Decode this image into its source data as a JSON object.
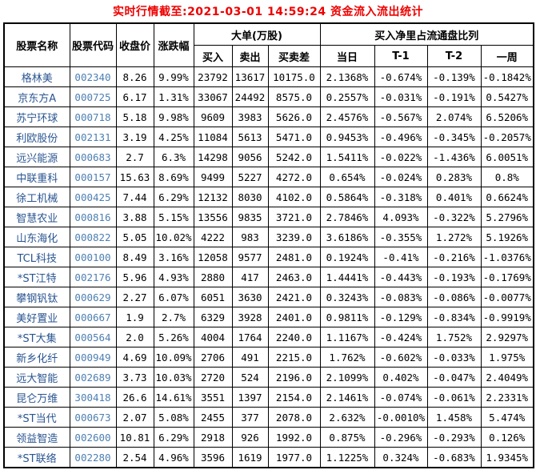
{
  "title": "实时行情截至:2021-03-01 14:59:24 资金流入流出统计",
  "colors": {
    "title_text": "#ee0000",
    "stock_name": "#2a5590",
    "stock_code": "#4d7fb2",
    "border": "#000000",
    "text": "#000000",
    "background": "#ffffff"
  },
  "chart_data": {
    "type": "table",
    "title": "实时行情截至:2021-03-01 14:59:24 资金流入流出统计",
    "column_groups": [
      {
        "label": "大单(万股)",
        "columns": [
          "买入",
          "卖出",
          "买卖差"
        ]
      },
      {
        "label": "买入净里占流通盘比列",
        "columns": [
          "当日",
          "T-1",
          "T-2",
          "一周"
        ]
      }
    ],
    "columns": [
      "股票名称",
      "股票代码",
      "收盘价",
      "涨跌幅",
      "买入",
      "卖出",
      "买卖差",
      "当日",
      "T-1",
      "T-2",
      "一周"
    ],
    "rows": [
      [
        "格林美",
        "002340",
        "8.26",
        "9.99%",
        "23792",
        "13617",
        "10175.0",
        "2.1368%",
        "-0.674%",
        "-0.139%",
        "-0.1842%"
      ],
      [
        "京东方A",
        "000725",
        "6.17",
        "1.31%",
        "33067",
        "24492",
        "8575.0",
        "0.2557%",
        "-0.031%",
        "-0.191%",
        "0.5427%"
      ],
      [
        "苏宁环球",
        "000718",
        "5.18",
        "9.98%",
        "9609",
        "3983",
        "5626.0",
        "2.4576%",
        "-0.567%",
        "2.074%",
        "6.5206%"
      ],
      [
        "利欧股份",
        "002131",
        "3.19",
        "4.25%",
        "11084",
        "5613",
        "5471.0",
        "0.9453%",
        "-0.496%",
        "-0.345%",
        "-0.2057%"
      ],
      [
        "远兴能源",
        "000683",
        "2.7",
        "6.3%",
        "14298",
        "9056",
        "5242.0",
        "1.5411%",
        "-0.022%",
        "-1.436%",
        "6.0051%"
      ],
      [
        "中联重科",
        "000157",
        "15.63",
        "8.69%",
        "9499",
        "5227",
        "4272.0",
        "0.654%",
        "-0.024%",
        "0.283%",
        "0.8%"
      ],
      [
        "徐工机械",
        "000425",
        "7.44",
        "6.29%",
        "12132",
        "8030",
        "4102.0",
        "0.5864%",
        "-0.318%",
        "0.401%",
        "0.6624%"
      ],
      [
        "智慧农业",
        "000816",
        "3.88",
        "5.15%",
        "13556",
        "9835",
        "3721.0",
        "2.7846%",
        "4.093%",
        "-0.322%",
        "5.2796%"
      ],
      [
        "山东海化",
        "000822",
        "5.05",
        "10.02%",
        "4222",
        "983",
        "3239.0",
        "3.6186%",
        "-0.355%",
        "1.272%",
        "5.1926%"
      ],
      [
        "TCL科技",
        "000100",
        "8.49",
        "3.16%",
        "12058",
        "9577",
        "2481.0",
        "0.1924%",
        "-0.41%",
        "-0.216%",
        "-1.0376%"
      ],
      [
        "*ST江特",
        "002176",
        "5.96",
        "4.93%",
        "2880",
        "417",
        "2463.0",
        "1.4441%",
        "-0.443%",
        "-0.193%",
        "-0.1769%"
      ],
      [
        "攀钢钒钛",
        "000629",
        "2.27",
        "6.07%",
        "6051",
        "3630",
        "2421.0",
        "0.3243%",
        "-0.083%",
        "-0.086%",
        "-0.0077%"
      ],
      [
        "美好置业",
        "000667",
        "1.9",
        "2.7%",
        "6329",
        "3928",
        "2401.0",
        "0.9811%",
        "-0.129%",
        "-0.834%",
        "-0.9919%"
      ],
      [
        "*ST大集",
        "000564",
        "2.0",
        "5.26%",
        "4004",
        "1764",
        "2240.0",
        "1.1167%",
        "-0.424%",
        "1.752%",
        "2.9297%"
      ],
      [
        "新乡化纤",
        "000949",
        "4.69",
        "10.09%",
        "2706",
        "491",
        "2215.0",
        "1.762%",
        "-0.602%",
        "-0.033%",
        "1.975%"
      ],
      [
        "远大智能",
        "002689",
        "3.73",
        "10.03%",
        "2720",
        "524",
        "2196.0",
        "2.1099%",
        "0.402%",
        "-0.047%",
        "2.4049%"
      ],
      [
        "昆仑万维",
        "300418",
        "26.6",
        "14.61%",
        "3551",
        "1397",
        "2154.0",
        "2.1461%",
        "-0.074%",
        "-0.061%",
        "2.2331%"
      ],
      [
        "*ST当代",
        "000673",
        "2.07",
        "5.08%",
        "2455",
        "377",
        "2078.0",
        "2.632%",
        "-0.0010%",
        "1.458%",
        "5.474%"
      ],
      [
        "领益智造",
        "002600",
        "10.81",
        "6.29%",
        "2918",
        "926",
        "1992.0",
        "0.875%",
        "-0.296%",
        "-0.293%",
        "0.126%"
      ],
      [
        "*ST联络",
        "002280",
        "2.54",
        "4.96%",
        "3596",
        "1619",
        "1977.0",
        "1.1225%",
        "0.324%",
        "-0.683%",
        "1.9345%"
      ]
    ]
  }
}
